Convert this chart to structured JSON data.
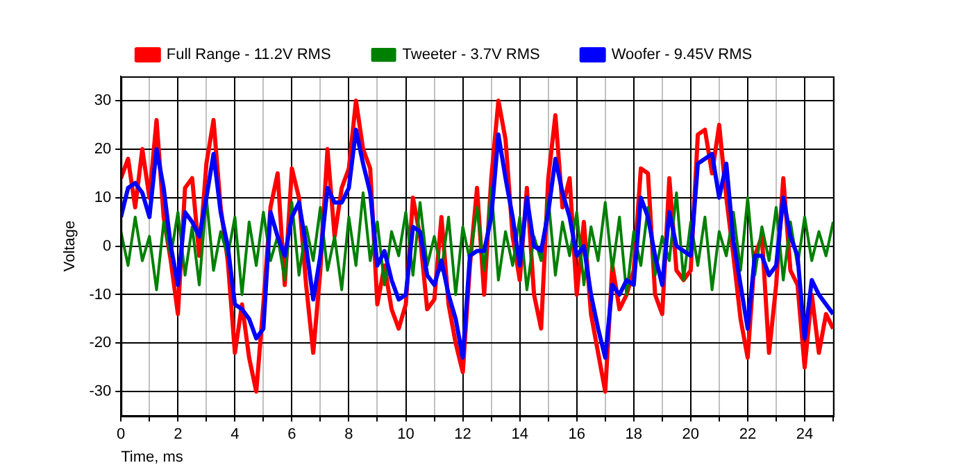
{
  "chart_data": {
    "type": "line",
    "xlabel": "Time, ms",
    "ylabel": "Voltage",
    "x": [
      0,
      0.25,
      0.5,
      0.75,
      1,
      1.25,
      1.5,
      1.75,
      2,
      2.25,
      2.5,
      2.75,
      3,
      3.25,
      3.5,
      3.75,
      4,
      4.25,
      4.5,
      4.75,
      5,
      5.25,
      5.5,
      5.75,
      6,
      6.25,
      6.5,
      6.75,
      7,
      7.25,
      7.5,
      7.75,
      8,
      8.25,
      8.5,
      8.75,
      9,
      9.25,
      9.5,
      9.75,
      10,
      10.25,
      10.5,
      10.75,
      11,
      11.25,
      11.5,
      11.75,
      12,
      12.25,
      12.5,
      12.75,
      13,
      13.25,
      13.5,
      13.75,
      14,
      14.25,
      14.5,
      14.75,
      15,
      15.25,
      15.5,
      15.75,
      16,
      16.25,
      16.5,
      16.75,
      17,
      17.25,
      17.5,
      17.75,
      18,
      18.25,
      18.5,
      18.75,
      19,
      19.25,
      19.5,
      19.75,
      20,
      20.25,
      20.5,
      20.75,
      21,
      21.25,
      21.5,
      21.75,
      22,
      22.25,
      22.5,
      22.75,
      23,
      23.25,
      23.5,
      23.75,
      24,
      24.25,
      24.5,
      24.75,
      25
    ],
    "series": [
      {
        "name": "Full Range - 11.2V RMS",
        "color": "#ff0000",
        "values": [
          14,
          18,
          8,
          20,
          10,
          26,
          6,
          -3,
          -14,
          12,
          14,
          -2,
          17,
          26,
          8,
          -3,
          -22,
          -12,
          -23,
          -30,
          -12,
          8,
          15,
          -8,
          16,
          10,
          -8,
          -22,
          -5,
          20,
          2,
          12,
          16,
          30,
          20,
          16,
          -12,
          -4,
          -13,
          -17,
          -12,
          10,
          2,
          -13,
          -11,
          6,
          -12,
          -20,
          -26,
          -4,
          12,
          -10,
          14,
          30,
          22,
          2,
          -7,
          12,
          -10,
          -17,
          14,
          27,
          8,
          14,
          -10,
          5,
          -14,
          -22,
          -30,
          -4,
          -13,
          -10,
          -5,
          16,
          15,
          -10,
          -14,
          14,
          -5,
          -7,
          -5,
          23,
          24,
          15,
          25,
          10,
          -2,
          -15,
          -23,
          -2,
          2,
          -22,
          -8,
          14,
          -5,
          -8,
          -25,
          -10,
          -22,
          -14,
          -17
        ]
      },
      {
        "name": "Tweeter - 3.7V RMS",
        "color": "#008000",
        "values": [
          3,
          -4,
          6,
          -3,
          2,
          -9,
          5,
          -2,
          7,
          -6,
          4,
          -8,
          10,
          -5,
          3,
          -2,
          6,
          -10,
          5,
          -4,
          7,
          -3,
          2,
          -7,
          9,
          -6,
          4,
          -3,
          8,
          -5,
          2,
          -9,
          6,
          -4,
          11,
          -3,
          5,
          -8,
          3,
          -2,
          7,
          -6,
          9,
          -4,
          2,
          -5,
          6,
          -10,
          4,
          -3,
          8,
          -5,
          12,
          -7,
          3,
          -4,
          6,
          -9,
          2,
          -3,
          10,
          -6,
          5,
          -2,
          7,
          -8,
          4,
          -3,
          9,
          -5,
          6,
          -10,
          3,
          -4,
          8,
          -6,
          2,
          -3,
          11,
          -7,
          5,
          -4,
          6,
          -9,
          3,
          -2,
          7,
          -5,
          10,
          -6,
          4,
          -3,
          8,
          -7,
          5,
          -4,
          6,
          -3,
          3,
          -2,
          5
        ]
      },
      {
        "name": "Woofer - 9.45V RMS",
        "color": "#0000ff",
        "values": [
          6,
          12,
          13,
          11,
          6,
          20,
          12,
          0,
          -8,
          7,
          5,
          2,
          10,
          19,
          7,
          0,
          -12,
          -13,
          -15,
          -19,
          -17,
          7,
          2,
          -2,
          6,
          9,
          0,
          -11,
          -2,
          12,
          9,
          9,
          12,
          24,
          17,
          11,
          -4,
          -1,
          -7,
          -11,
          -10,
          4,
          3,
          -6,
          -8,
          -3,
          -10,
          -15,
          -23,
          -2,
          -1,
          -1,
          6,
          23,
          14,
          6,
          -4,
          10,
          0,
          -1,
          7,
          18,
          11,
          6,
          -2,
          0,
          -10,
          -17,
          -23,
          -8,
          -10,
          -7,
          -8,
          10,
          6,
          -2,
          -8,
          7,
          0,
          -1,
          -2,
          17,
          18,
          19,
          10,
          17,
          1,
          -8,
          -17,
          -2,
          -2,
          -6,
          -4,
          10,
          2,
          -2,
          -19,
          -7,
          -10,
          -12,
          -14
        ]
      }
    ],
    "xlim": [
      0,
      25
    ],
    "xticks": [
      0,
      {
        "value": 1,
        "label": null
      },
      2,
      {
        "value": 3,
        "label": null
      },
      4,
      {
        "value": 5,
        "label": null
      },
      6,
      {
        "value": 7,
        "label": null
      },
      8,
      {
        "value": 9,
        "label": null
      },
      10,
      {
        "value": 11,
        "label": null
      },
      12,
      {
        "value": 13,
        "label": null
      },
      14,
      {
        "value": 15,
        "label": null
      },
      16,
      {
        "value": 17,
        "label": null
      },
      18,
      {
        "value": 19,
        "label": null
      },
      20,
      {
        "value": 21,
        "label": null
      },
      22,
      {
        "value": 23,
        "label": null
      },
      24,
      {
        "value": 25,
        "label": null
      }
    ],
    "ylim": [
      -35,
      35
    ],
    "yticks": [
      -30,
      -20,
      -10,
      0,
      10,
      20,
      30
    ],
    "grid": true,
    "legend": "top",
    "marker": "none",
    "line_style": "solid"
  }
}
